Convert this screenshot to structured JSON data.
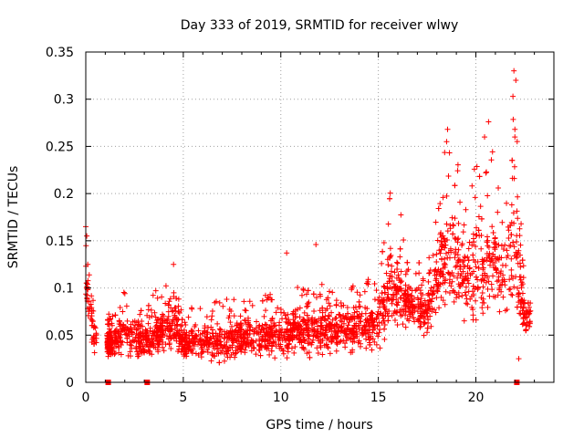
{
  "chart_data": {
    "type": "scatter",
    "title": "Day 333 of 2019, SRMTID for receiver wlwy",
    "xlabel": "GPS time / hours",
    "ylabel": "SRMTID / TECUs",
    "xlim": [
      0,
      24
    ],
    "ylim": [
      0,
      0.35
    ],
    "x_ticks": [
      0,
      5,
      10,
      15,
      20
    ],
    "x_tick_labels": [
      "0",
      "5",
      "10",
      "15",
      "20"
    ],
    "y_ticks": [
      0,
      0.05,
      0.1,
      0.15,
      0.2,
      0.25,
      0.3,
      0.35
    ],
    "y_tick_labels": [
      "0",
      "0.05",
      "0.1",
      "0.15",
      "0.2",
      "0.25",
      "0.3",
      "0.35"
    ],
    "grid": true,
    "marker": "plus",
    "series_color": "#ff0000",
    "zero_points": [
      {
        "x": 1.15,
        "y": 0
      },
      {
        "x": 3.15,
        "y": 0
      },
      {
        "x": 22.1,
        "y": 0
      }
    ],
    "envelope": [
      {
        "x": 0.0,
        "lo": 0.07,
        "hi": 0.165
      },
      {
        "x": 0.4,
        "lo": 0.03,
        "hi": 0.09
      },
      {
        "x": 1.1,
        "lo": 0.02,
        "hi": 0.07
      },
      {
        "x": 2.0,
        "lo": 0.02,
        "hi": 0.1
      },
      {
        "x": 3.0,
        "lo": 0.02,
        "hi": 0.08
      },
      {
        "x": 4.5,
        "lo": 0.02,
        "hi": 0.125
      },
      {
        "x": 5.0,
        "lo": 0.02,
        "hi": 0.08
      },
      {
        "x": 6.0,
        "lo": 0.02,
        "hi": 0.08
      },
      {
        "x": 7.0,
        "lo": 0.01,
        "hi": 0.09
      },
      {
        "x": 8.0,
        "lo": 0.02,
        "hi": 0.09
      },
      {
        "x": 9.0,
        "lo": 0.02,
        "hi": 0.09
      },
      {
        "x": 10.0,
        "lo": 0.02,
        "hi": 0.1
      },
      {
        "x": 11.0,
        "lo": 0.02,
        "hi": 0.11
      },
      {
        "x": 12.0,
        "lo": 0.02,
        "hi": 0.11
      },
      {
        "x": 13.0,
        "lo": 0.025,
        "hi": 0.1
      },
      {
        "x": 14.0,
        "lo": 0.025,
        "hi": 0.11
      },
      {
        "x": 15.0,
        "lo": 0.03,
        "hi": 0.11
      },
      {
        "x": 15.6,
        "lo": 0.04,
        "hi": 0.21
      },
      {
        "x": 16.5,
        "lo": 0.04,
        "hi": 0.16
      },
      {
        "x": 17.5,
        "lo": 0.04,
        "hi": 0.12
      },
      {
        "x": 18.2,
        "lo": 0.05,
        "hi": 0.23
      },
      {
        "x": 18.6,
        "lo": 0.05,
        "hi": 0.27
      },
      {
        "x": 19.5,
        "lo": 0.05,
        "hi": 0.2
      },
      {
        "x": 20.0,
        "lo": 0.04,
        "hi": 0.24
      },
      {
        "x": 20.5,
        "lo": 0.04,
        "hi": 0.27
      },
      {
        "x": 21.5,
        "lo": 0.05,
        "hi": 0.21
      },
      {
        "x": 22.0,
        "lo": 0.05,
        "hi": 0.33
      },
      {
        "x": 22.5,
        "lo": 0.04,
        "hi": 0.11
      },
      {
        "x": 22.8,
        "lo": 0.05,
        "hi": 0.1
      }
    ],
    "highlight_points": [
      {
        "x": 0.0,
        "y": 0.165
      },
      {
        "x": 0.05,
        "y": 0.155
      },
      {
        "x": 4.5,
        "y": 0.125
      },
      {
        "x": 10.3,
        "y": 0.137
      },
      {
        "x": 11.8,
        "y": 0.146
      },
      {
        "x": 18.55,
        "y": 0.268
      },
      {
        "x": 18.5,
        "y": 0.255
      },
      {
        "x": 20.65,
        "y": 0.276
      },
      {
        "x": 21.95,
        "y": 0.33
      },
      {
        "x": 22.05,
        "y": 0.32
      },
      {
        "x": 21.9,
        "y": 0.303
      },
      {
        "x": 22.0,
        "y": 0.268
      },
      {
        "x": 22.0,
        "y": 0.26
      },
      {
        "x": 22.2,
        "y": 0.025
      }
    ]
  }
}
